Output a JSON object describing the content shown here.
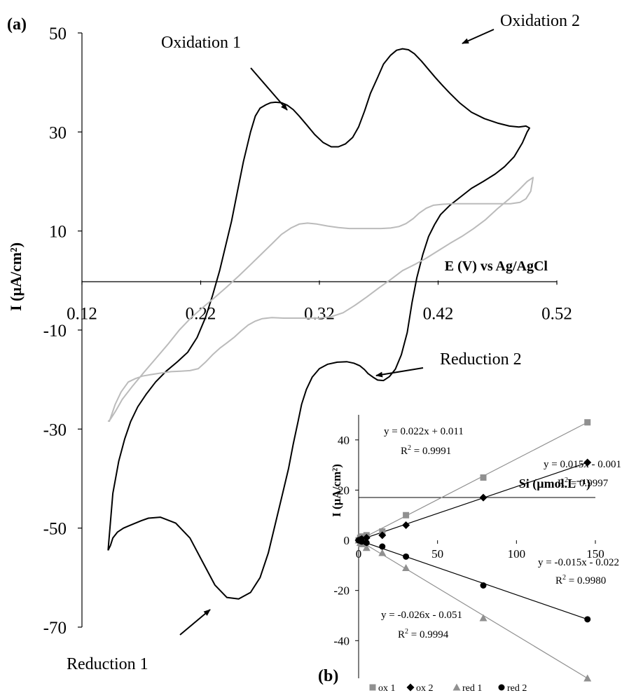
{
  "panel_a": {
    "label": "(a)",
    "annotations": {
      "ox1": "Oxidation 1",
      "ox2": "Oxidation 2",
      "red1": "Reduction 1",
      "red2": "Reduction 2"
    }
  },
  "panel_b": {
    "label": "(b)",
    "equations": [
      {
        "eq": "y = 0.022x + 0.011",
        "r2_prefix": "R",
        "r2_value": " = 0.9991"
      },
      {
        "eq": "y = 0.015x - 0.001",
        "r2_prefix": "R",
        "r2_value": " = 0.9997"
      },
      {
        "eq": "y = -0.015x - 0.022",
        "r2_prefix": "R",
        "r2_value": " = 0.9980"
      },
      {
        "eq": "y = -0.026x - 0.051",
        "r2_prefix": "R",
        "r2_value": " = 0.9994"
      }
    ]
  },
  "chart_data": [
    {
      "type": "line",
      "xlabel": "E (V) vs Ag/AgCl",
      "ylabel": "I (µA/cm²)",
      "xlim": [
        0.12,
        0.52
      ],
      "ylim": [
        -70,
        50
      ],
      "xticks": [
        "0.12",
        "0.22",
        "0.32",
        "0.42",
        "0.52"
      ],
      "yticks": [
        "50",
        "30",
        "10",
        "-10",
        "-30",
        "-50",
        "-70"
      ],
      "grid": false,
      "series": [
        {
          "color": "#000000",
          "x": [
            0.142,
            0.146,
            0.151,
            0.156,
            0.161,
            0.167,
            0.174,
            0.182,
            0.191,
            0.2,
            0.209,
            0.217,
            0.224,
            0.23,
            0.236,
            0.24,
            0.246,
            0.251,
            0.256,
            0.262,
            0.266,
            0.27,
            0.275,
            0.279,
            0.283,
            0.288,
            0.293,
            0.298,
            0.303,
            0.309,
            0.316,
            0.323,
            0.33,
            0.336,
            0.342,
            0.348,
            0.353,
            0.358,
            0.363,
            0.369,
            0.374,
            0.38,
            0.385,
            0.39,
            0.395,
            0.4,
            0.406,
            0.412,
            0.418,
            0.424,
            0.43,
            0.438,
            0.448,
            0.459,
            0.47,
            0.48,
            0.488,
            0.494,
            0.497,
            0.495,
            0.491,
            0.484,
            0.476,
            0.468,
            0.458,
            0.448,
            0.439,
            0.43,
            0.422,
            0.417,
            0.412,
            0.407,
            0.402,
            0.398,
            0.394,
            0.389,
            0.384,
            0.379,
            0.374,
            0.369,
            0.365,
            0.361,
            0.358,
            0.354,
            0.349,
            0.343,
            0.335,
            0.327,
            0.32,
            0.314,
            0.309,
            0.305,
            0.302,
            0.298,
            0.294,
            0.289,
            0.283,
            0.277,
            0.27,
            0.262,
            0.252,
            0.242,
            0.232,
            0.222,
            0.211,
            0.199,
            0.186,
            0.176,
            0.17,
            0.165,
            0.16,
            0.155,
            0.15,
            0.146,
            0.144,
            0.142
          ],
          "y": [
            -54.5,
            -43.0,
            -36.5,
            -32.0,
            -28.5,
            -25.5,
            -23.0,
            -20.5,
            -18.3,
            -16.5,
            -14.5,
            -11.5,
            -7.5,
            -3.0,
            2.0,
            6.0,
            12.0,
            18.0,
            24.0,
            30.0,
            33.2,
            34.8,
            35.5,
            35.9,
            36.0,
            35.9,
            35.4,
            34.5,
            33.2,
            31.5,
            29.5,
            27.9,
            27.0,
            27.0,
            27.6,
            28.9,
            31.0,
            34.2,
            37.8,
            41.0,
            43.7,
            45.5,
            46.5,
            46.8,
            46.6,
            45.8,
            44.3,
            42.6,
            40.9,
            39.3,
            37.8,
            35.9,
            34.0,
            32.7,
            31.8,
            31.2,
            31.0,
            31.2,
            30.8,
            30.0,
            27.8,
            25.0,
            23.0,
            21.5,
            20.0,
            18.6,
            16.9,
            15.2,
            13.3,
            11.3,
            8.9,
            5.2,
            0.5,
            -4.5,
            -10.5,
            -15.0,
            -17.9,
            -19.4,
            -20.2,
            -20.1,
            -19.5,
            -18.8,
            -18.0,
            -17.2,
            -16.7,
            -16.4,
            -16.5,
            -16.9,
            -17.8,
            -19.5,
            -22.0,
            -25.0,
            -28.5,
            -33.0,
            -38.0,
            -43.0,
            -49.0,
            -55.0,
            -60.0,
            -63.0,
            -64.3,
            -64.0,
            -61.5,
            -57.0,
            -52.0,
            -49.0,
            -47.8,
            -48.0,
            -48.5,
            -49.0,
            -49.5,
            -50.0,
            -50.8,
            -52.0,
            -53.5,
            -54.5
          ]
        },
        {
          "color": "#bbbbbb",
          "x": [
            0.143,
            0.148,
            0.153,
            0.159,
            0.165,
            0.171,
            0.178,
            0.186,
            0.195,
            0.203,
            0.211,
            0.218,
            0.224,
            0.23,
            0.236,
            0.242,
            0.248,
            0.254,
            0.26,
            0.266,
            0.272,
            0.28,
            0.29,
            0.3,
            0.31,
            0.32,
            0.33,
            0.34,
            0.35,
            0.36,
            0.37,
            0.38,
            0.39,
            0.4,
            0.41,
            0.42,
            0.43,
            0.44,
            0.45,
            0.46,
            0.47,
            0.48,
            0.488,
            0.495,
            0.5,
            0.498,
            0.494,
            0.489,
            0.481,
            0.472,
            0.462,
            0.452,
            0.442,
            0.432,
            0.424,
            0.416,
            0.41,
            0.404,
            0.399,
            0.393,
            0.387,
            0.38,
            0.372,
            0.363,
            0.354,
            0.345,
            0.336,
            0.327,
            0.318,
            0.31,
            0.303,
            0.296,
            0.288,
            0.28,
            0.271,
            0.262,
            0.252,
            0.242,
            0.232,
            0.222,
            0.212,
            0.202,
            0.192,
            0.182,
            0.172,
            0.162,
            0.154,
            0.148,
            0.144,
            0.142
          ],
          "y": [
            -28.5,
            -25.0,
            -22.5,
            -20.5,
            -19.8,
            -19.3,
            -19.0,
            -18.7,
            -18.4,
            -18.3,
            -18.2,
            -17.8,
            -16.5,
            -15.0,
            -13.7,
            -12.6,
            -11.5,
            -10.2,
            -9.0,
            -8.2,
            -7.7,
            -7.5,
            -7.6,
            -7.6,
            -7.6,
            -7.6,
            -7.3,
            -6.5,
            -5.0,
            -3.3,
            -1.5,
            0.2,
            2.0,
            3.2,
            4.5,
            6.0,
            7.5,
            8.9,
            10.5,
            12.3,
            14.5,
            16.5,
            18.3,
            20.0,
            20.8,
            18.0,
            16.5,
            15.8,
            15.5,
            15.5,
            15.5,
            15.5,
            15.5,
            15.5,
            15.4,
            15.2,
            14.6,
            13.6,
            12.5,
            11.5,
            10.9,
            10.6,
            10.5,
            10.5,
            10.5,
            10.5,
            10.7,
            11.0,
            11.4,
            11.6,
            11.4,
            10.6,
            9.3,
            7.4,
            5.3,
            3.2,
            0.9,
            -1.3,
            -3.4,
            -5.4,
            -7.5,
            -10.0,
            -13.0,
            -15.8,
            -18.6,
            -21.5,
            -24.0,
            -26.5,
            -28.0,
            -28.5
          ]
        }
      ]
    },
    {
      "type": "scatter",
      "xlabel": "Si (µmol.L⁻¹)",
      "ylabel": "I (µA/cm²)",
      "xlim": [
        0,
        150
      ],
      "ylim": [
        -55,
        50
      ],
      "xticks": [
        "0",
        "50",
        "100",
        "150"
      ],
      "yticks": [
        "40",
        "20",
        "0",
        "-20",
        "-40"
      ],
      "grid": false,
      "legend": "bottom",
      "series": [
        {
          "name": "ox 1",
          "marker": "square",
          "color": "#909090",
          "x": [
            0,
            1,
            2,
            5,
            15,
            30,
            79,
            145
          ],
          "y": [
            0,
            1,
            1.5,
            2,
            3.5,
            10,
            25,
            47
          ]
        },
        {
          "name": "ox 2",
          "marker": "diamond",
          "color": "#000000",
          "x": [
            0,
            1,
            2,
            5,
            15,
            30,
            79,
            145
          ],
          "y": [
            0,
            0.2,
            0.5,
            1,
            2,
            6,
            17,
            31
          ]
        },
        {
          "name": "red 1",
          "marker": "triangle",
          "color": "#909090",
          "x": [
            0,
            1,
            2,
            5,
            15,
            30,
            79,
            145
          ],
          "y": [
            0,
            -1,
            -1.5,
            -3,
            -5,
            -11,
            -31,
            -55
          ]
        },
        {
          "name": "red 2",
          "marker": "circle",
          "color": "#000000",
          "x": [
            0,
            1,
            2,
            5,
            15,
            30,
            79,
            145
          ],
          "y": [
            0,
            -0.2,
            -0.5,
            -1,
            -2.5,
            -6.5,
            -18,
            -31.5
          ]
        }
      ]
    }
  ]
}
